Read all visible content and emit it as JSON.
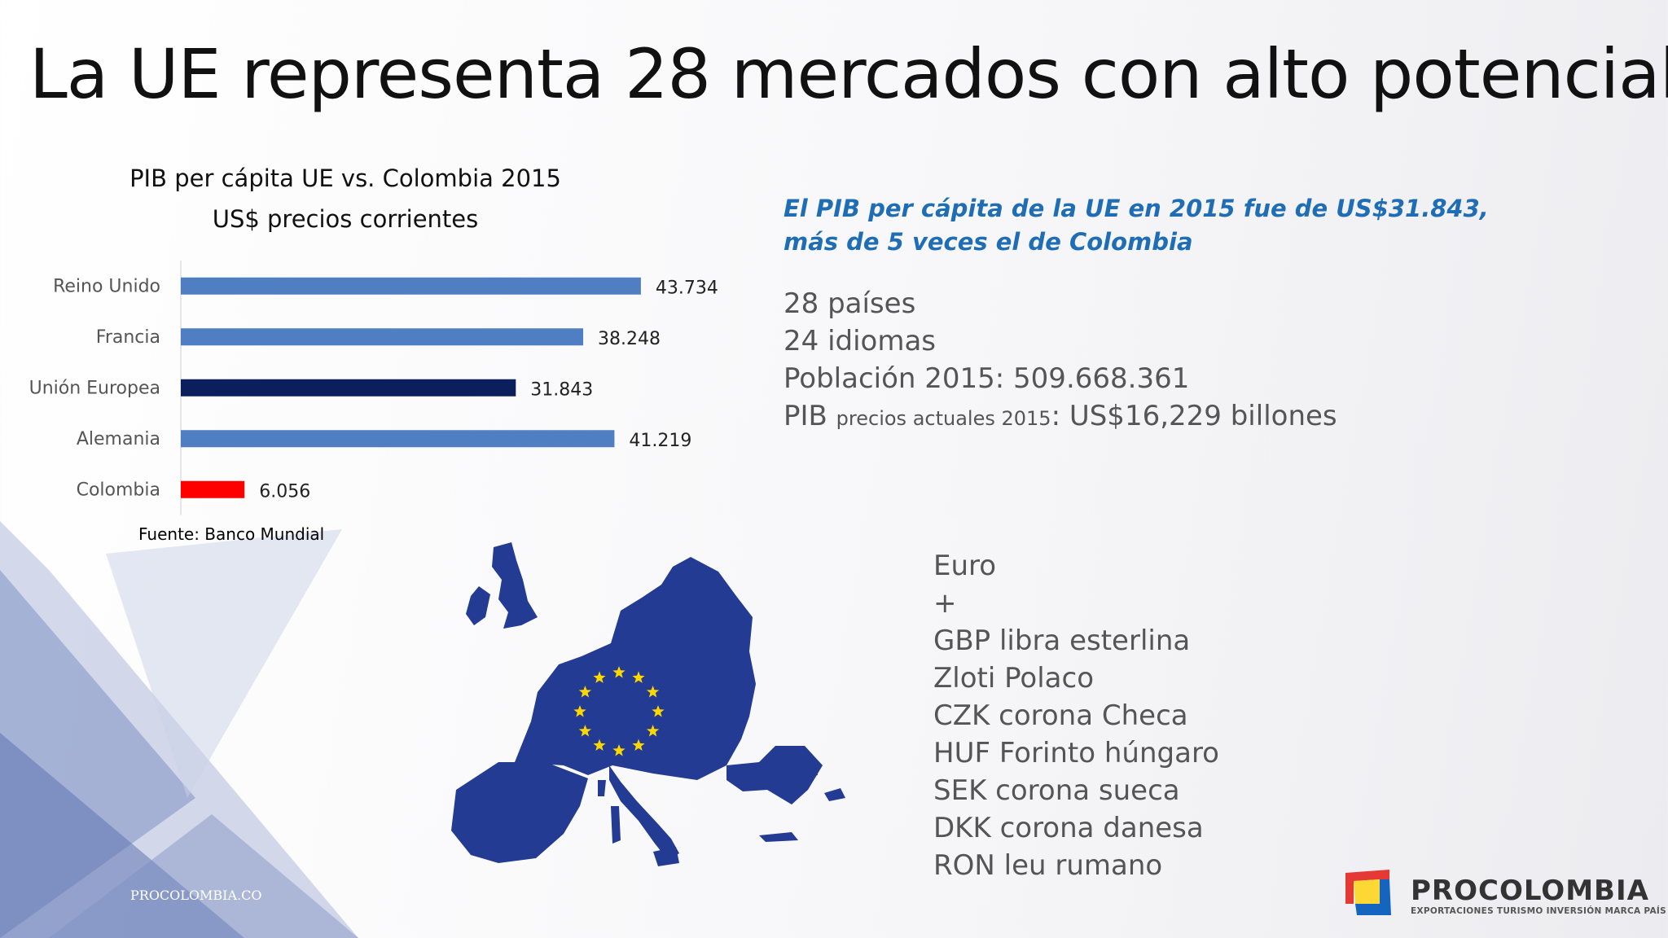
{
  "slide": {
    "title": "La UE representa 28 mercados con alto potencial",
    "footer_url": "PROCOLOMBIA.CO"
  },
  "chart_data": {
    "type": "bar",
    "orientation": "horizontal",
    "title": "PIB per cápita UE vs. Colombia 2015",
    "subtitle": "US$ precios corrientes",
    "categories": [
      "Reino Unido",
      "Francia",
      "Unión Europea",
      "Alemania",
      "Colombia"
    ],
    "values": [
      43734,
      38248,
      31843,
      41219,
      6056
    ],
    "value_labels": [
      "43.734",
      "38.248",
      "31.843",
      "41.219",
      "6.056"
    ],
    "colors": [
      "#4f7ec3",
      "#4f7ec3",
      "#0b1f5c",
      "#4f7ec3",
      "#ff0000"
    ],
    "xlim": [
      0,
      48000
    ],
    "grid": false,
    "legend": false,
    "source": "Fuente: Banco Mundial"
  },
  "highlight": {
    "text": "El PIB per cápita de la UE en 2015 fue de US$31.843, más de 5 veces el de Colombia",
    "color": "#1f6eb5"
  },
  "facts": {
    "countries": "28 países",
    "languages": "24 idiomas",
    "population": "Población 2015: 509.668.361",
    "gdp_prefix": "PIB",
    "gdp_small": "precios actuales 2015",
    "gdp_value": ":  US$16,229 billones"
  },
  "currencies": [
    "Euro",
    "+",
    "GBP libra esterlina",
    "Zloti Polaco",
    "CZK corona Checa",
    "HUF Forinto húngaro",
    "SEK corona sueca",
    "DKK corona danesa",
    "RON leu rumano"
  ],
  "map": {
    "icon": "eu-map-icon",
    "fill": "#233b93",
    "stars": "#ffd700",
    "star_count": 12
  },
  "brand": {
    "name": "PROCOLOMBIA",
    "tagline": "EXPORTACIONES TURISMO INVERSIÓN MARCA PAÍS",
    "colors": {
      "red": "#e53935",
      "blue": "#1565c0",
      "yellow": "#fdd835"
    }
  }
}
